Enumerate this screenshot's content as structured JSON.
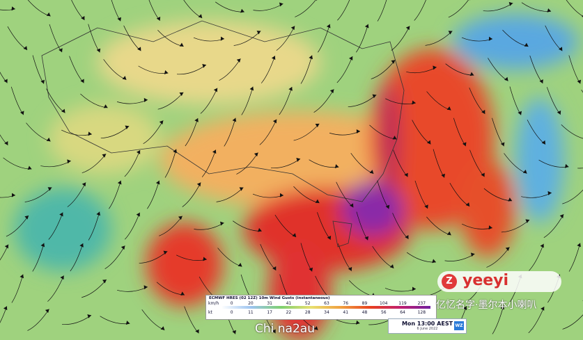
{
  "legend": {
    "title": "ECMWF HRES (02 12Z) 10m Wind Gusts (instantaneous)",
    "rows": [
      {
        "unit": "km/h",
        "values": [
          "0",
          "20",
          "31",
          "41",
          "52",
          "63",
          "76",
          "89",
          "104",
          "119",
          "237"
        ]
      },
      {
        "unit": "kt",
        "values": [
          "0",
          "11",
          "17",
          "22",
          "28",
          "34",
          "41",
          "48",
          "56",
          "64",
          "128"
        ]
      }
    ]
  },
  "time": {
    "label": "Mon 13:00 AEST",
    "date": "6 June 2022",
    "logo": "WZ"
  },
  "watermark": {
    "brand": "yeeyi",
    "caption": "亿忆名字·墨尔本小喇叭",
    "footer": "Chi na2au"
  }
}
